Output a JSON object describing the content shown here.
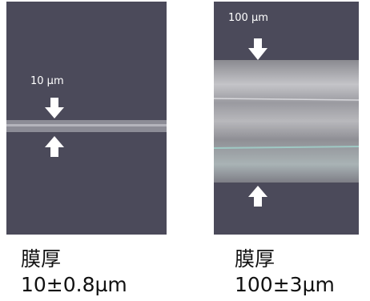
{
  "left": {
    "scale_label": "10 µm",
    "caption": "膜厚",
    "thickness": "10±0.8µm"
  },
  "right": {
    "scale_label": "100 µm",
    "caption": "膜厚",
    "thickness": "100±3µm"
  }
}
